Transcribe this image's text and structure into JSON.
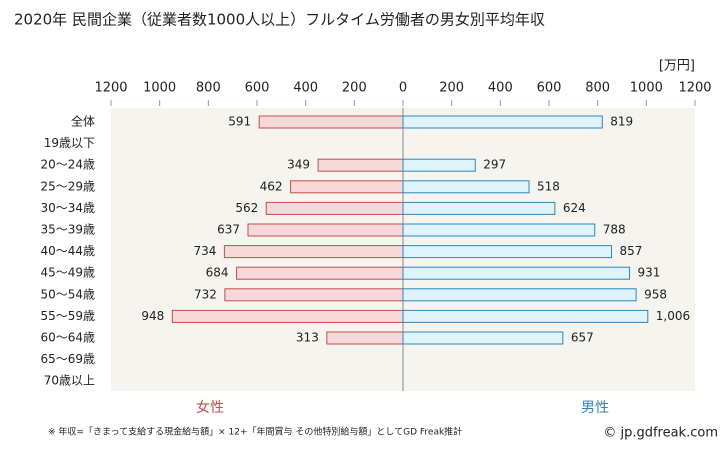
{
  "chart_data": {
    "type": "butterfly",
    "title": "2020年 民間企業（従業者数1000人以上）フルタイム労働者の男女別平均年収",
    "unit": "[万円]",
    "categories": [
      "全体",
      "19歳以下",
      "20～24歳",
      "25～29歳",
      "30～34歳",
      "35～39歳",
      "40～44歳",
      "45～49歳",
      "50～54歳",
      "55～59歳",
      "60～64歳",
      "65～69歳",
      "70歳以上"
    ],
    "series": [
      {
        "name": "女性",
        "color": "#f7d8d8",
        "stroke": "#c0504d",
        "text_color": "#c0504d",
        "values": [
          591,
          null,
          349,
          462,
          562,
          637,
          734,
          684,
          732,
          948,
          313,
          null,
          null
        ]
      },
      {
        "name": "男性",
        "color": "#dff3fb",
        "stroke": "#2e86c1",
        "text_color": "#2e86c1",
        "values": [
          819,
          null,
          297,
          518,
          624,
          788,
          857,
          931,
          958,
          1006,
          657,
          null,
          null
        ],
        "value_labels": [
          "819",
          null,
          "297",
          "518",
          "624",
          "788",
          "857",
          "931",
          "958",
          "1,006",
          "657",
          null,
          null
        ]
      }
    ],
    "xlim": [
      0,
      1200
    ],
    "xticks": [
      0,
      200,
      400,
      600,
      800,
      1000,
      1200
    ],
    "footnote": "※ 年収=「きまって支給する現金給与額」× 12+「年間賞与 その他特別給与額」としてGD Freak推計",
    "credit": "© jp.gdfreak.com"
  }
}
